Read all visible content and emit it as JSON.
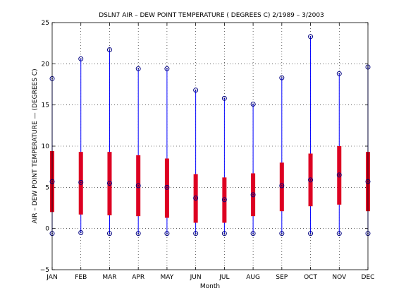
{
  "chart_data": {
    "type": "box",
    "title": "DSLN7  AIR – DEW POINT TEMPERATURE ( DEGREES C) 2/1989 – 3/2003",
    "xlabel": "Month",
    "ylabel": "AIR – DEW POINT TEMPERATURE  —  (DEGREES C)",
    "ylim": [
      -5,
      25
    ],
    "yticks": [
      "−5",
      "0",
      "5",
      "10",
      "15",
      "20",
      "25"
    ],
    "ytick_values": [
      -5,
      0,
      5,
      10,
      15,
      20,
      25
    ],
    "grid": true,
    "categories": [
      "JAN",
      "FEB",
      "MAR",
      "APR",
      "MAY",
      "JUN",
      "JUL",
      "AUG",
      "SEP",
      "OCT",
      "NOV",
      "DEC"
    ],
    "max": [
      18.2,
      20.6,
      21.7,
      19.4,
      19.4,
      16.8,
      15.8,
      15.1,
      18.3,
      23.3,
      18.8,
      19.6
    ],
    "q3": [
      9.4,
      9.3,
      9.3,
      8.9,
      8.5,
      6.6,
      6.2,
      6.7,
      8.0,
      9.1,
      10.0,
      9.3
    ],
    "median": [
      5.7,
      5.6,
      5.5,
      5.2,
      5.0,
      3.7,
      3.5,
      4.1,
      5.2,
      5.9,
      6.5,
      5.7
    ],
    "q1": [
      2.0,
      1.7,
      1.6,
      1.5,
      1.3,
      0.7,
      0.7,
      1.5,
      2.1,
      2.7,
      2.9,
      2.1
    ],
    "min": [
      -0.6,
      -0.5,
      -0.6,
      -0.6,
      -0.6,
      -0.6,
      -0.6,
      -0.6,
      -0.6,
      -0.6,
      -0.6,
      -0.6
    ],
    "colors": {
      "whisker": "#0000ff",
      "box": "#dd0022",
      "marker": "#000080",
      "grid": "#000000"
    }
  }
}
